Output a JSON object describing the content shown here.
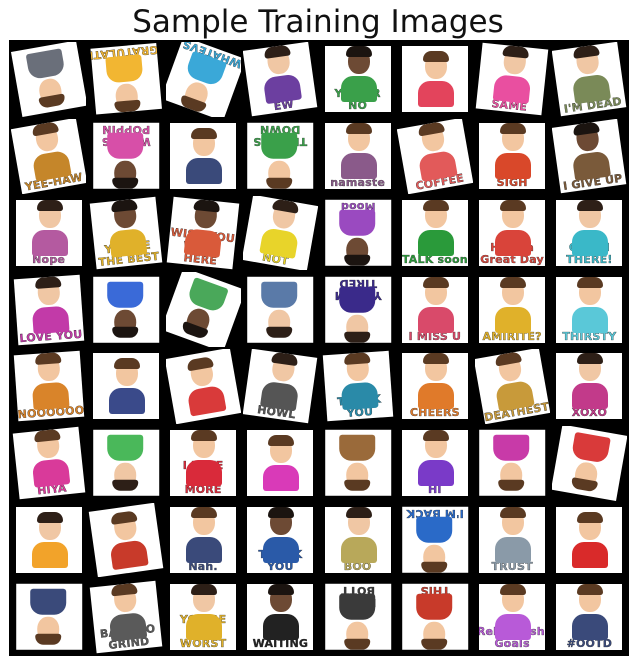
{
  "title": "Sample Training Images",
  "grid": {
    "rows": 8,
    "cols": 8,
    "tiles": [
      {
        "text": "",
        "rotation": 170,
        "bg": "#ffffff",
        "accent": "#6a6f7a",
        "skin": "#f2c6a0",
        "hair": "#5a3a22"
      },
      {
        "text": "CONGRATULATIONS",
        "rotation": 175,
        "bg": "#ffffff",
        "accent": "#f2b632",
        "skin": "#f2c6a0",
        "hair": "#5a3a22"
      },
      {
        "text": "WHATEVS",
        "rotation": 200,
        "bg": "#ffffff",
        "accent": "#3aa8d8",
        "skin": "#f2c6a0",
        "hair": "#5a3a22"
      },
      {
        "text": "EW",
        "rotation": -8,
        "bg": "#ffffff",
        "accent": "#6c3fa0",
        "skin": "#f0c7a4",
        "hair": "#2d1f17"
      },
      {
        "text": "YES OR NO",
        "rotation": 0,
        "bg": "#ffffff",
        "accent": "#3aa04a",
        "skin": "#6d4a34",
        "hair": "#1b1410"
      },
      {
        "text": "",
        "rotation": 0,
        "bg": "#ffffff",
        "accent": "#e3445c",
        "skin": "#f2c6a0",
        "hair": "#5a3a22"
      },
      {
        "text": "SAME",
        "rotation": 6,
        "bg": "#ffffff",
        "accent": "#e94fa0",
        "skin": "#f0c7a4",
        "hair": "#2d1f17"
      },
      {
        "text": "I'M DEAD",
        "rotation": -8,
        "bg": "#ffffff",
        "accent": "#7a8a58",
        "skin": "#f0c7a4",
        "hair": "#2d1f17"
      },
      {
        "text": "YEE-HAW",
        "rotation": -10,
        "bg": "#ffffff",
        "accent": "#c5862a",
        "skin": "#f2c6a0",
        "hair": "#5a3a22"
      },
      {
        "text": "WHAT'S POPPIN",
        "rotation": 180,
        "bg": "#ffffff",
        "accent": "#d74fa8",
        "skin": "#6d4a34",
        "hair": "#1b1410"
      },
      {
        "text": "",
        "rotation": 0,
        "bg": "#ffffff",
        "accent": "#3a4a7a",
        "skin": "#f2c6a0",
        "hair": "#5a3a22"
      },
      {
        "text": "THUMBS DOWN",
        "rotation": 180,
        "bg": "#ffffff",
        "accent": "#3aa04a",
        "skin": "#f2c6a0",
        "hair": "#5a3a22"
      },
      {
        "text": "namaste",
        "rotation": 0,
        "bg": "#ffffff",
        "accent": "#8a5a8a",
        "skin": "#f2c6a0",
        "hair": "#5a3a22"
      },
      {
        "text": "BRB COFFEE",
        "rotation": -10,
        "bg": "#ffffff",
        "accent": "#e25a5a",
        "skin": "#f2c6a0",
        "hair": "#5a3a22"
      },
      {
        "text": "SIGH",
        "rotation": 0,
        "bg": "#ffffff",
        "accent": "#d9482a",
        "skin": "#f2c6a0",
        "hair": "#5a3a22"
      },
      {
        "text": "I GIVE UP",
        "rotation": -8,
        "bg": "#ffffff",
        "accent": "#7a5a3a",
        "skin": "#6d4a34",
        "hair": "#1b1410"
      },
      {
        "text": "Nope",
        "rotation": 0,
        "bg": "#ffffff",
        "accent": "#b45aa0",
        "skin": "#f0c7a4",
        "hair": "#2d1f17"
      },
      {
        "text": "YOU'RE THE BEST",
        "rotation": -6,
        "bg": "#ffffff",
        "accent": "#e0b12a",
        "skin": "#6d4a34",
        "hair": "#1b1410"
      },
      {
        "text": "WISH YOU WERE HERE",
        "rotation": 6,
        "bg": "#ffffff",
        "accent": "#d95a3a",
        "skin": "#6d4a34",
        "hair": "#1b1410"
      },
      {
        "text": "NOT",
        "rotation": 10,
        "bg": "#ffffff",
        "accent": "#e8d42a",
        "skin": "#f0c7a4",
        "hair": "#2d1f17"
      },
      {
        "text": "Mood",
        "rotation": 180,
        "bg": "#ffffff",
        "accent": "#9a4ac0",
        "skin": "#6d4a34",
        "hair": "#1b1410"
      },
      {
        "text": "TALK soon",
        "rotation": 0,
        "bg": "#ffffff",
        "accent": "#2a9a3a",
        "skin": "#f2c6a0",
        "hair": "#5a3a22"
      },
      {
        "text": "Have a Great Day",
        "rotation": 0,
        "bg": "#ffffff",
        "accent": "#d9443a",
        "skin": "#f2c6a0",
        "hair": "#5a3a22"
      },
      {
        "text": "OH, HI THERE!",
        "rotation": 0,
        "bg": "#ffffff",
        "accent": "#3ab8c8",
        "skin": "#f0c7a4",
        "hair": "#2d1f17"
      },
      {
        "text": "LOVE YOU",
        "rotation": -4,
        "bg": "#ffffff",
        "accent": "#c23aa8",
        "skin": "#f0c7a4",
        "hair": "#2d1f17"
      },
      {
        "text": "",
        "rotation": 180,
        "bg": "#ffffff",
        "accent": "#3a6ad8",
        "skin": "#6d4a34",
        "hair": "#1b1410"
      },
      {
        "text": "",
        "rotation": 200,
        "bg": "#ffffff",
        "accent": "#4aa85a",
        "skin": "#6d4a34",
        "hair": "#1b1410"
      },
      {
        "text": "",
        "rotation": 180,
        "bg": "#ffffff",
        "accent": "#5a7aa8",
        "skin": "#f0c7a4",
        "hair": "#2d1f17"
      },
      {
        "text": "YES I'M TIRED",
        "rotation": 180,
        "bg": "#ffffff",
        "accent": "#3a2a8a",
        "skin": "#f0c7a4",
        "hair": "#2d1f17"
      },
      {
        "text": "I MISS U",
        "rotation": 0,
        "bg": "#ffffff",
        "accent": "#d94a6a",
        "skin": "#f2c6a0",
        "hair": "#5a3a22"
      },
      {
        "text": "AMIRITE?",
        "rotation": 0,
        "bg": "#ffffff",
        "accent": "#e0b12a",
        "skin": "#f2c6a0",
        "hair": "#5a3a22"
      },
      {
        "text": "THIRSTY",
        "rotation": 0,
        "bg": "#ffffff",
        "accent": "#5ac8d8",
        "skin": "#f2c6a0",
        "hair": "#5a3a22"
      },
      {
        "text": "NOOOOOO",
        "rotation": -4,
        "bg": "#ffffff",
        "accent": "#d9842a",
        "skin": "#f2c6a0",
        "hair": "#5a3a22"
      },
      {
        "text": "",
        "rotation": 0,
        "bg": "#ffffff",
        "accent": "#3a4a8a",
        "skin": "#f2c6a0",
        "hair": "#5a3a22"
      },
      {
        "text": "",
        "rotation": -10,
        "bg": "#ffffff",
        "accent": "#d93a3a",
        "skin": "#f2c6a0",
        "hair": "#5a3a22"
      },
      {
        "text": "HOWL",
        "rotation": 8,
        "bg": "#ffffff",
        "accent": "#555555",
        "skin": "#f0c7a4",
        "hair": "#2d1f17"
      },
      {
        "text": "THANK YOU",
        "rotation": -4,
        "bg": "#ffffff",
        "accent": "#2a8aa8",
        "skin": "#f2c6a0",
        "hair": "#5a3a22"
      },
      {
        "text": "CHEERS",
        "rotation": 0,
        "bg": "#ffffff",
        "accent": "#e07a2a",
        "skin": "#f2c6a0",
        "hair": "#5a3a22"
      },
      {
        "text": "DEATHEST",
        "rotation": -10,
        "bg": "#ffffff",
        "accent": "#c89a3a",
        "skin": "#f2c6a0",
        "hair": "#5a3a22"
      },
      {
        "text": "XOXO",
        "rotation": 0,
        "bg": "#ffffff",
        "accent": "#c23a8a",
        "skin": "#f0c7a4",
        "hair": "#2d1f17"
      },
      {
        "text": "HIYA",
        "rotation": -6,
        "bg": "#ffffff",
        "accent": "#d93a9a",
        "skin": "#f2c6a0",
        "hair": "#5a3a22"
      },
      {
        "text": "",
        "rotation": 180,
        "bg": "#ffffff",
        "accent": "#4ab85a",
        "skin": "#f0c7a4",
        "hair": "#2d1f17"
      },
      {
        "text": "I LOVE YOU MORE",
        "rotation": 0,
        "bg": "#ffffff",
        "accent": "#d92a3a",
        "skin": "#f2c6a0",
        "hair": "#5a3a22"
      },
      {
        "text": "",
        "rotation": 0,
        "bg": "#ffffff",
        "accent": "#d93ab8",
        "skin": "#f2c6a0",
        "hair": "#5a3a22"
      },
      {
        "text": "",
        "rotation": 180,
        "bg": "#ffffff",
        "accent": "#9a6a3a",
        "skin": "#f2c6a0",
        "hair": "#5a3a22"
      },
      {
        "text": "HI",
        "rotation": 0,
        "bg": "#ffffff",
        "accent": "#7a3ac8",
        "skin": "#f2c6a0",
        "hair": "#5a3a22"
      },
      {
        "text": "",
        "rotation": 180,
        "bg": "#ffffff",
        "accent": "#c83aa8",
        "skin": "#f2c6a0",
        "hair": "#5a3a22"
      },
      {
        "text": "",
        "rotation": 190,
        "bg": "#ffffff",
        "accent": "#d93a3a",
        "skin": "#f2c6a0",
        "hair": "#5a3a22"
      },
      {
        "text": "",
        "rotation": 0,
        "bg": "#ffffff",
        "accent": "#f2a32a",
        "skin": "#f0c7a4",
        "hair": "#2d1f17"
      },
      {
        "text": "",
        "rotation": -8,
        "bg": "#ffffff",
        "accent": "#c83a2a",
        "skin": "#f2c6a0",
        "hair": "#5a3a22"
      },
      {
        "text": "Nah.",
        "rotation": 0,
        "bg": "#ffffff",
        "accent": "#3a4a7a",
        "skin": "#f2c6a0",
        "hair": "#5a3a22"
      },
      {
        "text": "THANK YOU",
        "rotation": 0,
        "bg": "#ffffff",
        "accent": "#2a5aa8",
        "skin": "#6d4a34",
        "hair": "#1b1410"
      },
      {
        "text": "BOO",
        "rotation": 0,
        "bg": "#ffffff",
        "accent": "#b8a85a",
        "skin": "#f0c7a4",
        "hair": "#2d1f17"
      },
      {
        "text": "I'M BACK",
        "rotation": 180,
        "bg": "#ffffff",
        "accent": "#2a6ac8",
        "skin": "#f2c6a0",
        "hair": "#5a3a22"
      },
      {
        "text": "TRUST",
        "rotation": 0,
        "bg": "#ffffff",
        "accent": "#8a9aa8",
        "skin": "#f2c6a0",
        "hair": "#5a3a22"
      },
      {
        "text": "",
        "rotation": 0,
        "bg": "#ffffff",
        "accent": "#d92a2a",
        "skin": "#f2c6a0",
        "hair": "#5a3a22"
      },
      {
        "text": "",
        "rotation": 180,
        "bg": "#ffffff",
        "accent": "#3a4a7a",
        "skin": "#f2c6a0",
        "hair": "#5a3a22"
      },
      {
        "text": "BACK TO GRIND",
        "rotation": -6,
        "bg": "#ffffff",
        "accent": "#5a5a5a",
        "skin": "#f2c6a0",
        "hair": "#5a3a22"
      },
      {
        "text": "YOU'RE THE WORST",
        "rotation": 0,
        "bg": "#ffffff",
        "accent": "#e0b12a",
        "skin": "#f0c7a4",
        "hair": "#2d1f17"
      },
      {
        "text": "I'M WAITING",
        "rotation": 0,
        "bg": "#ffffff",
        "accent": "#222222",
        "skin": "#6d4a34",
        "hair": "#1b1410"
      },
      {
        "text": "I LIKE BOTT",
        "rotation": 180,
        "bg": "#ffffff",
        "accent": "#3a3a3a",
        "skin": "#f2c6a0",
        "hair": "#5a3a22"
      },
      {
        "text": "I GOT THIS",
        "rotation": 180,
        "bg": "#ffffff",
        "accent": "#c83a2a",
        "skin": "#f2c6a0",
        "hair": "#5a3a22"
      },
      {
        "text": "#Relationship Goals",
        "rotation": 0,
        "bg": "#ffffff",
        "accent": "#b85ad8",
        "skin": "#f2c6a0",
        "hair": "#5a3a22"
      },
      {
        "text": "#OOTD",
        "rotation": 0,
        "bg": "#ffffff",
        "accent": "#3a4a7a",
        "skin": "#f2c6a0",
        "hair": "#5a3a22"
      }
    ]
  }
}
